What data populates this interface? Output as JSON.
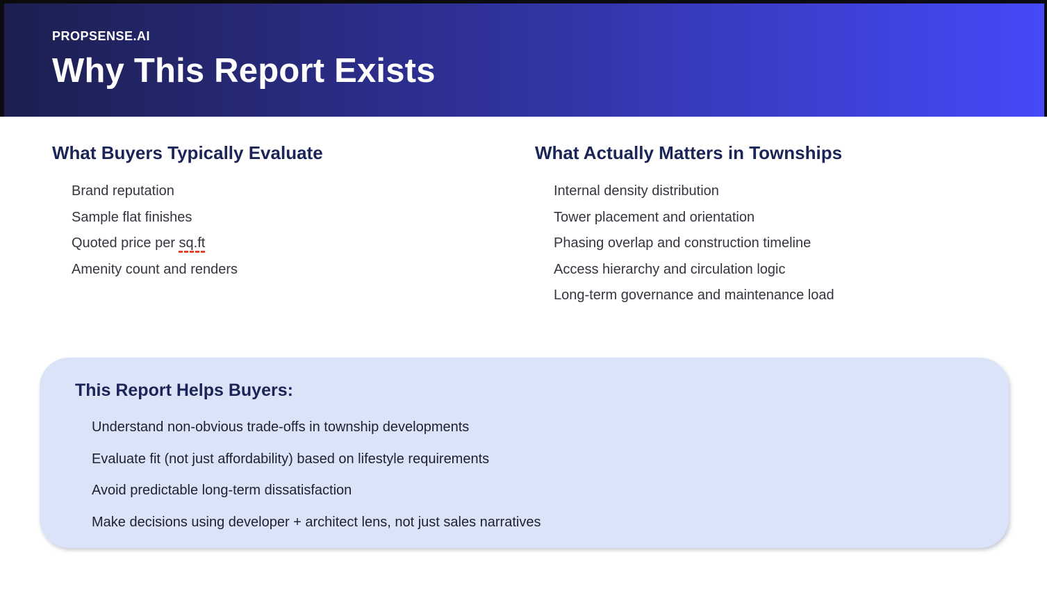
{
  "header": {
    "brand": "PROPSENSE.AI",
    "title": "Why This Report Exists"
  },
  "left_column": {
    "heading": "What Buyers Typically Evaluate",
    "items": [
      "Brand reputation",
      "Sample flat finishes",
      {
        "prefix": "Quoted price per ",
        "misspelled": "sq.ft"
      },
      "Amenity count and renders"
    ]
  },
  "right_column": {
    "heading": "What Actually Matters in Townships",
    "items": [
      "Internal density distribution",
      "Tower placement and orientation",
      "Phasing overlap and construction timeline",
      "Access hierarchy and circulation logic",
      "Long-term governance and maintenance load"
    ]
  },
  "report_box": {
    "heading": "This Report Helps Buyers:",
    "items": [
      "Understand non-obvious trade-offs in township developments",
      "Evaluate fit (not just affordability) based on lifestyle requirements",
      "Avoid predictable long-term dissatisfaction",
      "Make decisions using developer + architect lens, not just sales narratives"
    ]
  },
  "colors": {
    "header_gradient_left": "#1c1f4f",
    "header_gradient_right": "#4649f8",
    "heading_navy": "#1b2557",
    "body_text": "#33363e",
    "box_background": "#dbe3f8",
    "misspell_underline": "#e8402a"
  }
}
